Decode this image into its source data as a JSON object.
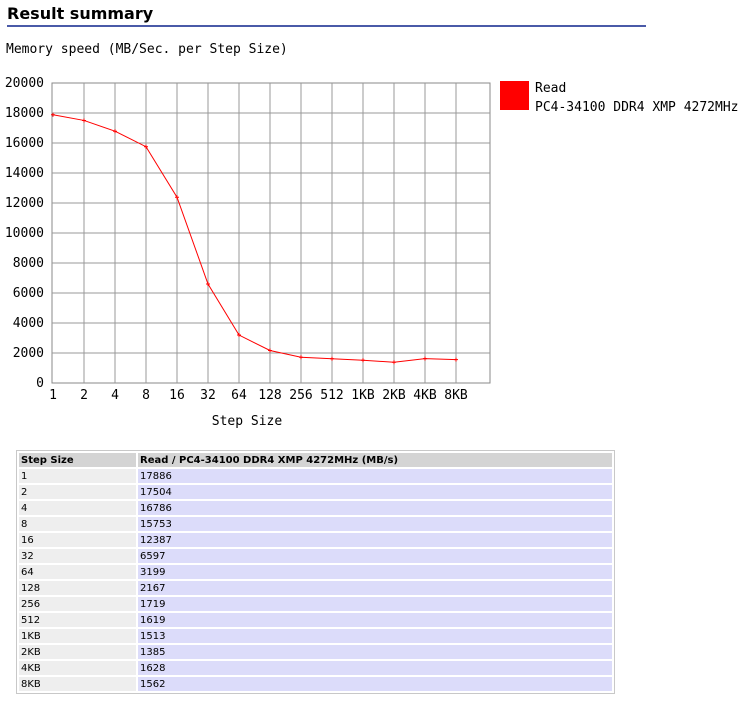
{
  "page": {
    "heading": "Result summary"
  },
  "chart_data": {
    "type": "line",
    "title": "Memory speed (MB/Sec. per Step Size)",
    "xlabel": "Step Size",
    "ylabel": "",
    "categories": [
      "1",
      "2",
      "4",
      "8",
      "16",
      "32",
      "64",
      "128",
      "256",
      "512",
      "1KB",
      "2KB",
      "4KB",
      "8KB"
    ],
    "yticks": [
      "0",
      "2000",
      "4000",
      "6000",
      "8000",
      "10000",
      "12000",
      "14000",
      "16000",
      "18000",
      "20000"
    ],
    "ylim": [
      0,
      20000
    ],
    "grid": true,
    "legend_position": "right",
    "series": [
      {
        "name": "Read",
        "description": "PC4-34100 DDR4 XMP 4272MHz",
        "color": "#ff0000",
        "values": [
          17886,
          17504,
          16786,
          15753,
          12387,
          6597,
          3199,
          2167,
          1719,
          1619,
          1513,
          1385,
          1628,
          1562
        ]
      }
    ]
  },
  "table": {
    "headers": [
      "Step Size",
      "Read / PC4-34100 DDR4 XMP 4272MHz (MB/s)"
    ],
    "rows": [
      [
        "1",
        "17886"
      ],
      [
        "2",
        "17504"
      ],
      [
        "4",
        "16786"
      ],
      [
        "8",
        "15753"
      ],
      [
        "16",
        "12387"
      ],
      [
        "32",
        "6597"
      ],
      [
        "64",
        "3199"
      ],
      [
        "128",
        "2167"
      ],
      [
        "256",
        "1719"
      ],
      [
        "512",
        "1619"
      ],
      [
        "1KB",
        "1513"
      ],
      [
        "2KB",
        "1385"
      ],
      [
        "4KB",
        "1628"
      ],
      [
        "8KB",
        "1562"
      ]
    ]
  }
}
